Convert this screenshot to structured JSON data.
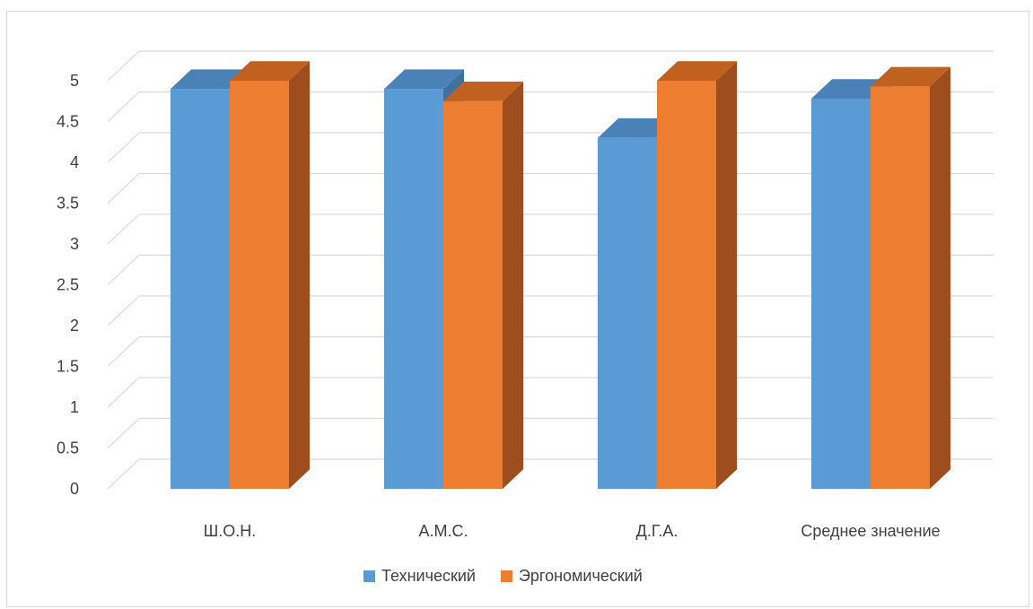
{
  "chart_data": {
    "type": "bar",
    "style": "3d-clustered-column",
    "categories": [
      "Ш.О.Н.",
      "А.М.С.",
      "Д.Г.А.",
      "Среднее значение"
    ],
    "series": [
      {
        "name": "Технический",
        "values": [
          4.9,
          4.9,
          4.3,
          4.78
        ],
        "color": "#5b9bd5",
        "side_color": "#41719c",
        "top_color": "#4a82b7"
      },
      {
        "name": "Эргономический",
        "values": [
          5.0,
          4.75,
          5.0,
          4.93
        ],
        "color": "#ed7d31",
        "side_color": "#9e4e1e",
        "top_color": "#c0611f"
      }
    ],
    "y_ticks": [
      "0",
      "0.5",
      "1",
      "1.5",
      "2",
      "2.5",
      "3",
      "3.5",
      "4",
      "4.5",
      "5"
    ],
    "ylim": [
      0,
      5
    ],
    "grid": true,
    "legend_position": "bottom",
    "gridline_color": "#d9d9d9"
  }
}
